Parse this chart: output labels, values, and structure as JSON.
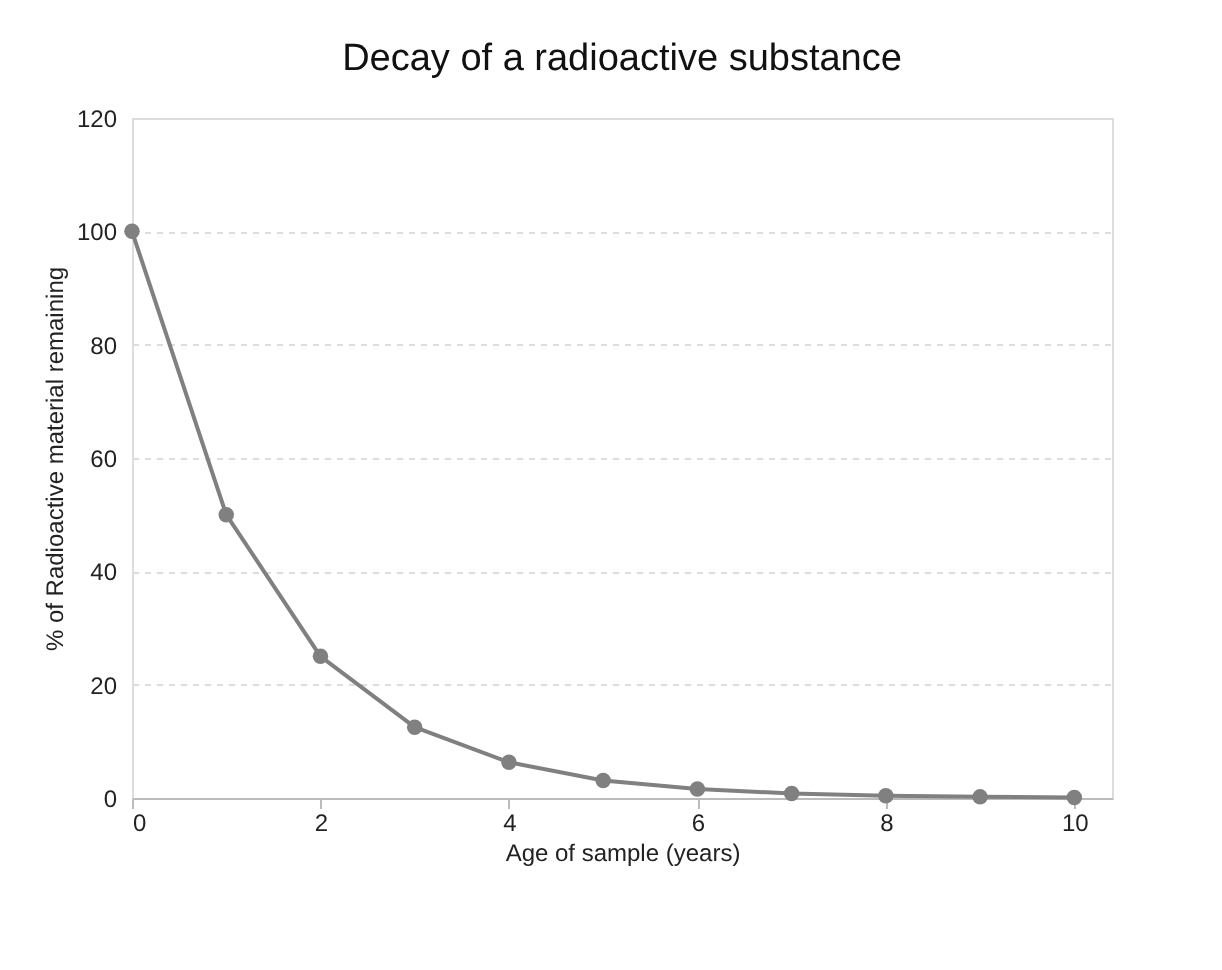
{
  "chart_data": {
    "type": "line",
    "title": "Decay of a radioactive substance",
    "xlabel": "Age of sample (years)",
    "ylabel": "% of Radioactive material remaining",
    "x": [
      0,
      1,
      2,
      3,
      4,
      5,
      6,
      7,
      8,
      9,
      10
    ],
    "series": [
      {
        "color": "#808080",
        "values": [
          100,
          50,
          25,
          12.5,
          6.3,
          3.1,
          1.6,
          0.8,
          0.4,
          0.2,
          0.1
        ]
      }
    ],
    "xlim": [
      0,
      10.4
    ],
    "xticks": [
      0,
      2,
      4,
      6,
      8,
      10
    ],
    "ylim": [
      0,
      120
    ],
    "yticks": [
      0,
      20,
      40,
      60,
      80,
      100,
      120
    ],
    "grid": "y",
    "marker": "circle",
    "line_style": "solid",
    "legend": false
  }
}
